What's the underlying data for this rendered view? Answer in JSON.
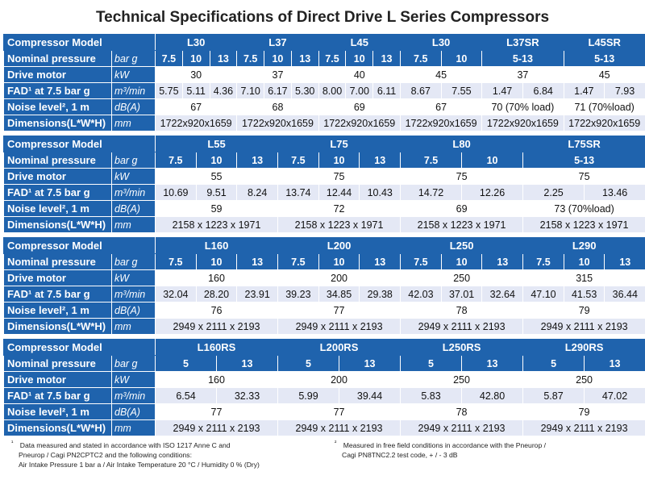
{
  "title": "Technical Specifications of Direct Drive L Series Compressors",
  "row_labels": {
    "model": "Compressor Model",
    "pressure": "Nominal pressure",
    "motor": "Drive motor",
    "fad": "FAD¹ at 7.5 bar g",
    "noise": "Noise level², 1 m",
    "dims": "Dimensions(L*W*H)"
  },
  "units": {
    "pressure": "bar g",
    "motor": "kW",
    "fad": "m³/min",
    "noise": "dB(A)",
    "dims": "mm"
  },
  "tables": [
    {
      "groups": [
        {
          "model": "L30",
          "pressures": [
            "7.5",
            "10",
            "13"
          ],
          "motor": "30",
          "fad": [
            "5.75",
            "5.11",
            "4.36"
          ],
          "noise": "67",
          "dims": "1722x920x1659"
        },
        {
          "model": "L37",
          "pressures": [
            "7.5",
            "10",
            "13"
          ],
          "motor": "37",
          "fad": [
            "7.10",
            "6.17",
            "5.30"
          ],
          "noise": "68",
          "dims": "1722x920x1659"
        },
        {
          "model": "L45",
          "pressures": [
            "7.5",
            "10",
            "13"
          ],
          "motor": "40",
          "fad": [
            "8.00",
            "7.00",
            "6.11"
          ],
          "noise": "69",
          "dims": "1722x920x1659"
        },
        {
          "model": "L30",
          "pressures": [
            "7.5",
            "10"
          ],
          "motor": "45",
          "fad": [
            "8.67",
            "7.55"
          ],
          "noise": "67",
          "dims": "1722x920x1659"
        },
        {
          "model": "L37SR",
          "pressures": [
            "5-13"
          ],
          "motor": "37",
          "fad": [
            "1.47",
            "6.84"
          ],
          "noise": "70 (70% load)",
          "dims": "1722x920x1659"
        },
        {
          "model": "L45SR",
          "pressures": [
            "5-13"
          ],
          "motor": "45",
          "fad": [
            "1.47",
            "7.93"
          ],
          "noise": "71 (70%load)",
          "dims": "1722x920x1659"
        }
      ]
    },
    {
      "groups": [
        {
          "model": "L55",
          "pressures": [
            "7.5",
            "10",
            "13"
          ],
          "motor": "55",
          "fad": [
            "10.69",
            "9.51",
            "8.24"
          ],
          "noise": "59",
          "dims": "2158 x 1223 x 1971"
        },
        {
          "model": "L75",
          "pressures": [
            "7.5",
            "10",
            "13"
          ],
          "motor": "75",
          "fad": [
            "13.74",
            "12.44",
            "10.43"
          ],
          "noise": "72",
          "dims": "2158 x 1223 x 1971"
        },
        {
          "model": "L80",
          "pressures": [
            "7.5",
            "10"
          ],
          "motor": "75",
          "fad": [
            "14.72",
            "12.26"
          ],
          "noise": "69",
          "dims": "2158 x 1223 x 1971"
        },
        {
          "model": "L75SR",
          "pressures": [
            "5-13"
          ],
          "motor": "75",
          "fad": [
            "2.25",
            "13.46"
          ],
          "noise": "73 (70%load)",
          "dims": "2158 x 1223 x 1971"
        }
      ]
    },
    {
      "groups": [
        {
          "model": "L160",
          "pressures": [
            "7.5",
            "10",
            "13"
          ],
          "motor": "160",
          "fad": [
            "32.04",
            "28.20",
            "23.91"
          ],
          "noise": "76",
          "dims": "2949 x 2111 x 2193"
        },
        {
          "model": "L200",
          "pressures": [
            "7.5",
            "10",
            "13"
          ],
          "motor": "200",
          "fad": [
            "39.23",
            "34.85",
            "29.38"
          ],
          "noise": "77",
          "dims": "2949 x 2111 x 2193"
        },
        {
          "model": "L250",
          "pressures": [
            "7.5",
            "10",
            "13"
          ],
          "motor": "250",
          "fad": [
            "42.03",
            "37.01",
            "32.64"
          ],
          "noise": "78",
          "dims": "2949 x 2111 x 2193"
        },
        {
          "model": "L290",
          "pressures": [
            "7.5",
            "10",
            "13"
          ],
          "motor": "315",
          "fad": [
            "47.10",
            "41.53",
            "36.44"
          ],
          "noise": "79",
          "dims": "2949 x 2111 x 2193"
        }
      ]
    },
    {
      "groups": [
        {
          "model": "L160RS",
          "pressures": [
            "5",
            "13"
          ],
          "motor": "160",
          "fad": [
            "6.54",
            "32.33"
          ],
          "noise": "77",
          "dims": "2949 x 2111 x 2193"
        },
        {
          "model": "L200RS",
          "pressures": [
            "5",
            "13"
          ],
          "motor": "200",
          "fad": [
            "5.99",
            "39.44"
          ],
          "noise": "77",
          "dims": "2949 x 2111 x 2193"
        },
        {
          "model": "L250RS",
          "pressures": [
            "5",
            "13"
          ],
          "motor": "250",
          "fad": [
            "5.83",
            "42.80"
          ],
          "noise": "78",
          "dims": "2949 x 2111 x 2193"
        },
        {
          "model": "L290RS",
          "pressures": [
            "5",
            "13"
          ],
          "motor": "250",
          "fad": [
            "5.87",
            "47.02"
          ],
          "noise": "79",
          "dims": "2949 x 2111 x 2193"
        }
      ]
    }
  ],
  "footnotes": {
    "note1_mark": "¹",
    "note1": [
      "Data measured and stated in accordance with ISO 1217 Anne C and",
      "Pneurop / Cagi PN2CPTC2 and the following conditions:",
      "Air Intake Pressure 1 bar a / Air Intake Temperature 20 °C  / Humidity 0 % (Dry)"
    ],
    "note2_mark": "²",
    "note2": [
      "Measured in free field conditions in accordance with the Pneurop /",
      "Cagi PN8TNC2.2 test code, + / - 3 dB"
    ]
  }
}
